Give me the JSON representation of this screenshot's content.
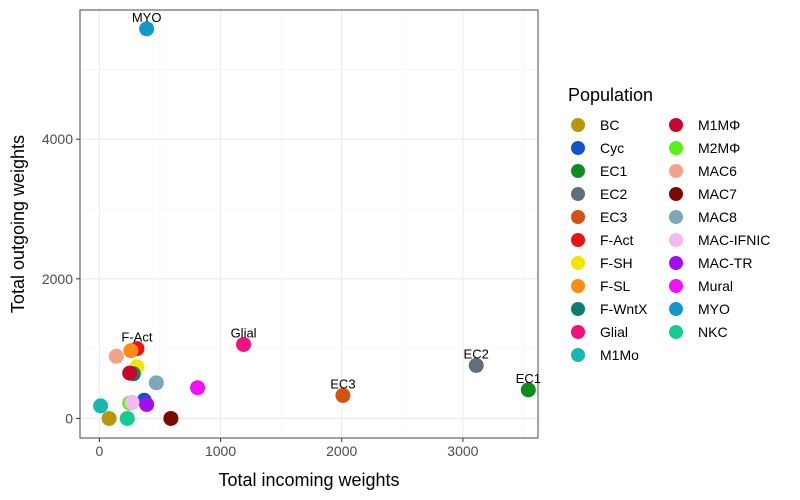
{
  "chart_data": {
    "type": "scatter",
    "xlabel": "Total incoming weights",
    "ylabel": "Total outgoing weights",
    "xlim": [
      -160,
      3620
    ],
    "ylim": [
      -280,
      5850
    ],
    "x_ticks": [
      0,
      1000,
      2000,
      3000
    ],
    "y_ticks": [
      0,
      2000,
      4000
    ],
    "grid": true,
    "legend": {
      "title": "Population",
      "placement": "right",
      "columns": 2
    },
    "points": [
      {
        "name": "BC",
        "x": 80,
        "y": 0,
        "color": "#B8960C"
      },
      {
        "name": "Cyc",
        "x": 370,
        "y": 260,
        "color": "#1155CC"
      },
      {
        "name": "EC1",
        "x": 3540,
        "y": 410,
        "color": "#0E8C1E",
        "label": "EC1"
      },
      {
        "name": "EC2",
        "x": 3110,
        "y": 760,
        "color": "#5F707A",
        "label": "EC2"
      },
      {
        "name": "EC3",
        "x": 2010,
        "y": 330,
        "color": "#D35410",
        "label": "EC3"
      },
      {
        "name": "F-Act",
        "x": 310,
        "y": 1000,
        "color": "#EE1111",
        "label": "F-Act"
      },
      {
        "name": "F-SH",
        "x": 310,
        "y": 740,
        "color": "#F2E600"
      },
      {
        "name": "F-SL",
        "x": 260,
        "y": 970,
        "color": "#FF8C12"
      },
      {
        "name": "F-WntX",
        "x": 280,
        "y": 640,
        "color": "#0A7F6E"
      },
      {
        "name": "Glial",
        "x": 1190,
        "y": 1060,
        "color": "#F0117A",
        "label": "Glial"
      },
      {
        "name": "M1Mo",
        "x": 10,
        "y": 180,
        "color": "#17B8B0"
      },
      {
        "name": "M1MΦ",
        "x": 250,
        "y": 650,
        "color": "#C4082E"
      },
      {
        "name": "M2MΦ",
        "x": 250,
        "y": 220,
        "color": "#55F21A"
      },
      {
        "name": "MAC6",
        "x": 140,
        "y": 890,
        "color": "#F4A38A"
      },
      {
        "name": "MAC7",
        "x": 590,
        "y": 0,
        "color": "#7A0A00"
      },
      {
        "name": "MAC8",
        "x": 470,
        "y": 510,
        "color": "#7BA7B6"
      },
      {
        "name": "MAC-IFNIC",
        "x": 270,
        "y": 230,
        "color": "#F7B8F2"
      },
      {
        "name": "MAC-TR",
        "x": 390,
        "y": 200,
        "color": "#A10EF2"
      },
      {
        "name": "Mural",
        "x": 810,
        "y": 440,
        "color": "#F211F2"
      },
      {
        "name": "MYO",
        "x": 390,
        "y": 5580,
        "color": "#1398CC",
        "label": "MYO"
      },
      {
        "name": "NKC",
        "x": 230,
        "y": 0,
        "color": "#14CC94"
      }
    ]
  }
}
